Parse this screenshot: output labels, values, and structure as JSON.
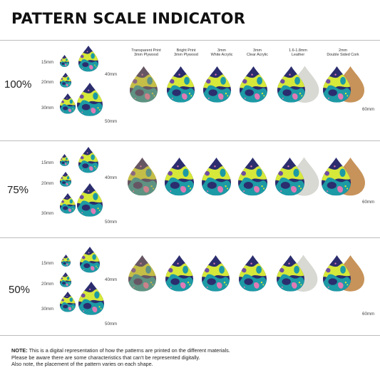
{
  "title": "PATTERN SCALE INDICATOR",
  "materials": [
    {
      "line1": "Transparent Print",
      "line2": "3mm Plywood"
    },
    {
      "line1": "Bright Print",
      "line2": "3mm Plywood"
    },
    {
      "line1": "3mm",
      "line2": "White Acrylic"
    },
    {
      "line1": "3mm",
      "line2": "Clear Acrylic"
    },
    {
      "line1": "1.6-1.8mm",
      "line2": "Leather"
    },
    {
      "line1": "2mm",
      "line2": "Double Sided Cork"
    }
  ],
  "sections": [
    {
      "scale": "100%",
      "sizes": [
        "15mm",
        "20mm",
        "30mm",
        "40mm",
        "50mm"
      ],
      "big_size": "60mm"
    },
    {
      "scale": "75%",
      "sizes": [
        "15mm",
        "20mm",
        "30mm",
        "40mm",
        "50mm"
      ],
      "big_size": "60mm"
    },
    {
      "scale": "50%",
      "sizes": [
        "15mm",
        "20mm",
        "30mm",
        "40mm",
        "50mm"
      ],
      "big_size": "60mm"
    }
  ],
  "note": {
    "bold": "NOTE:",
    "line1": " This is a digital representation of how the patterns are printed on the different materials.",
    "line2": "Please be aware there are some characteristics that can't be represented digitally.",
    "line3": "Also note, the placement of the pattern varies on each shape."
  },
  "colors": {
    "navy": "#2b2d6e",
    "lime": "#d6e83a",
    "teal": "#1c9aa5",
    "pink": "#e07ab5",
    "purple": "#6f4ea0",
    "ply": "#b08a5a",
    "cork": "#c7935a",
    "leather": "#d9d9d4"
  }
}
